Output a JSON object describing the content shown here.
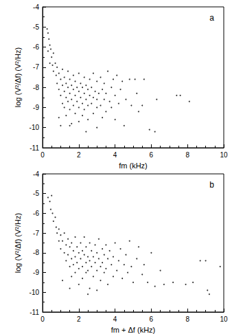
{
  "chart_data": [
    {
      "type": "scatter",
      "annotation": "a",
      "xlabel": "fm (kHz)",
      "ylabel": "log (V²/Δf) (V²/Hz)",
      "color": "#000000",
      "marker": "circle",
      "xlim": [
        0,
        10
      ],
      "xticks": [
        0,
        2,
        4,
        6,
        8,
        10
      ],
      "ylim": [
        -11,
        -4
      ],
      "yticks": [
        -11,
        -10,
        -9,
        -8,
        -7,
        -6,
        -5,
        -4
      ],
      "x": [
        0.25,
        0.3,
        0.35,
        0.4,
        0.3,
        0.45,
        0.5,
        0.4,
        0.6,
        0.55,
        0.6,
        0.7,
        0.75,
        0.8,
        0.8,
        0.9,
        0.9,
        1.0,
        1.0,
        1.1,
        1.1,
        1.1,
        1.2,
        1.2,
        1.2,
        1.3,
        1.3,
        1.3,
        1.4,
        1.4,
        1.4,
        1.5,
        1.5,
        1.5,
        1.6,
        1.6,
        1.6,
        1.7,
        1.7,
        1.7,
        1.8,
        1.8,
        1.8,
        1.9,
        1.9,
        2.0,
        2.0,
        2.0,
        2.0,
        2.1,
        2.1,
        2.2,
        2.2,
        2.2,
        2.3,
        2.3,
        2.3,
        2.4,
        2.4,
        2.5,
        2.5,
        2.5,
        2.6,
        2.6,
        2.7,
        2.7,
        2.8,
        2.8,
        2.8,
        2.9,
        3.0,
        3.0,
        3.0,
        3.1,
        3.2,
        3.2,
        3.3,
        3.3,
        3.4,
        3.4,
        3.5,
        3.5,
        3.6,
        3.7,
        3.8,
        3.8,
        3.9,
        4.0,
        4.0,
        4.1,
        4.2,
        4.3,
        4.4,
        4.5,
        4.6,
        4.8,
        4.9,
        5.1,
        5.2,
        5.3,
        5.6,
        5.5,
        5.9,
        6.2,
        6.3,
        7.4,
        7.6,
        8.1,
        1.0,
        0.9,
        1.5,
        2.4,
        3.0
      ],
      "values": [
        -5.1,
        -5.3,
        -5.6,
        -5.9,
        -6.2,
        -6.1,
        -6.5,
        -6.8,
        -6.3,
        -6.9,
        -7.2,
        -6.8,
        -7.4,
        -7.0,
        -7.8,
        -7.3,
        -8.1,
        -7.6,
        -8.4,
        -7.1,
        -7.9,
        -8.8,
        -7.5,
        -8.2,
        -9.0,
        -7.8,
        -8.5,
        -9.4,
        -7.2,
        -8.0,
        -8.7,
        -7.6,
        -8.3,
        -9.1,
        -7.9,
        -8.6,
        -9.8,
        -7.4,
        -8.1,
        -8.9,
        -7.7,
        -8.4,
        -9.3,
        -8.0,
        -8.7,
        -7.3,
        -8.2,
        -9.0,
        -9.7,
        -7.8,
        -8.5,
        -8.0,
        -8.8,
        -9.4,
        -7.5,
        -8.3,
        -9.1,
        -7.9,
        -8.6,
        -8.1,
        -8.9,
        -9.6,
        -7.6,
        -8.4,
        -8.0,
        -8.8,
        -7.3,
        -8.5,
        -9.3,
        -8.2,
        -7.7,
        -8.6,
        -9.0,
        -8.3,
        -7.5,
        -8.9,
        -8.1,
        -9.5,
        -7.8,
        -8.6,
        -8.3,
        -9.2,
        -7.2,
        -8.7,
        -8.0,
        -9.0,
        -7.6,
        -8.4,
        -9.6,
        -7.4,
        -8.8,
        -8.1,
        -7.7,
        -9.9,
        -8.6,
        -7.6,
        -8.9,
        -7.6,
        -8.3,
        -9.2,
        -7.6,
        -8.9,
        -10.1,
        -10.2,
        -8.6,
        -8.4,
        -8.4,
        -8.7,
        -9.9,
        -9.5,
        -9.9,
        -10.2,
        -10.0
      ]
    },
    {
      "type": "scatter",
      "annotation": "b",
      "xlabel": "fm + Δf (kHz)",
      "ylabel": "log (V²/Δf) (V²/Hz)",
      "color": "#000000",
      "marker": "circle",
      "xlim": [
        0,
        10
      ],
      "xticks": [
        0,
        2,
        4,
        6,
        8,
        10
      ],
      "ylim": [
        -11,
        -4
      ],
      "yticks": [
        -11,
        -10,
        -9,
        -8,
        -7,
        -6,
        -5,
        -4
      ],
      "x": [
        0.3,
        0.4,
        0.5,
        0.45,
        0.55,
        0.6,
        0.7,
        0.75,
        0.8,
        0.9,
        0.9,
        1.0,
        1.0,
        1.1,
        1.2,
        1.2,
        1.3,
        1.3,
        1.4,
        1.4,
        1.5,
        1.5,
        1.6,
        1.6,
        1.6,
        1.7,
        1.7,
        1.8,
        1.8,
        1.8,
        1.9,
        1.9,
        2.0,
        2.0,
        2.0,
        2.1,
        2.1,
        2.2,
        2.2,
        2.2,
        2.3,
        2.3,
        2.4,
        2.4,
        2.4,
        2.5,
        2.5,
        2.6,
        2.6,
        2.6,
        2.7,
        2.7,
        2.8,
        2.8,
        2.9,
        2.9,
        3.0,
        3.0,
        3.1,
        3.1,
        3.2,
        3.2,
        3.3,
        3.3,
        3.4,
        3.4,
        3.5,
        3.5,
        3.6,
        3.6,
        3.7,
        3.8,
        3.9,
        3.9,
        4.0,
        4.1,
        4.2,
        4.3,
        4.4,
        4.5,
        4.6,
        4.7,
        4.8,
        4.9,
        5.0,
        5.2,
        5.3,
        5.5,
        5.6,
        5.8,
        6.0,
        6.2,
        6.5,
        6.7,
        7.2,
        7.9,
        8.3,
        8.7,
        9.0,
        9.1,
        9.2,
        9.8,
        1.5,
        2.5,
        3.0,
        1.1
      ],
      "values": [
        -5.2,
        -5.4,
        -5.1,
        -5.8,
        -6.0,
        -6.4,
        -6.2,
        -6.7,
        -7.0,
        -6.8,
        -7.4,
        -7.1,
        -7.8,
        -7.4,
        -7.0,
        -8.0,
        -7.6,
        -8.4,
        -7.3,
        -8.1,
        -7.7,
        -8.7,
        -7.5,
        -8.3,
        -9.2,
        -7.9,
        -8.6,
        -7.2,
        -8.2,
        -9.0,
        -7.7,
        -8.5,
        -8.0,
        -8.8,
        -9.6,
        -7.5,
        -8.3,
        -7.9,
        -8.7,
        -9.3,
        -7.2,
        -8.1,
        -7.7,
        -8.5,
        -9.0,
        -8.2,
        -8.9,
        -7.5,
        -8.4,
        -9.8,
        -7.9,
        -8.7,
        -8.2,
        -9.2,
        -7.6,
        -8.5,
        -8.0,
        -8.9,
        -7.3,
        -8.3,
        -8.7,
        -9.4,
        -7.8,
        -8.5,
        -8.1,
        -9.0,
        -7.6,
        -8.8,
        -8.3,
        -9.6,
        -7.9,
        -8.6,
        -8.2,
        -9.2,
        -7.5,
        -8.9,
        -8.4,
        -7.8,
        -9.3,
        -8.6,
        -8.1,
        -9.0,
        -7.4,
        -8.7,
        -9.5,
        -8.3,
        -7.7,
        -9.1,
        -8.6,
        -9.5,
        -8.0,
        -9.7,
        -8.9,
        -9.6,
        -9.5,
        -9.6,
        -9.5,
        -8.4,
        -8.4,
        -9.9,
        -10.1,
        -8.7,
        -9.8,
        -10.1,
        -9.9,
        -9.4
      ]
    }
  ]
}
